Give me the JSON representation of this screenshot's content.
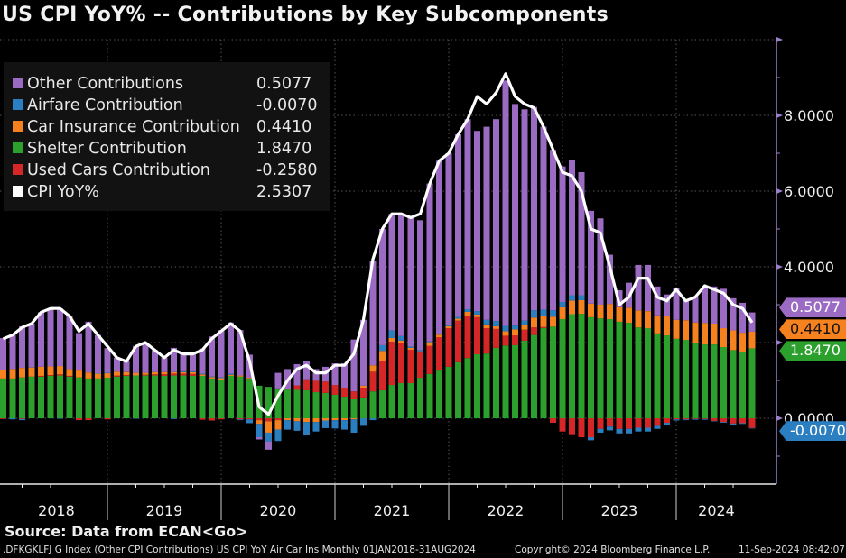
{
  "title": "US CPI YoY% -- Contributions by Key Subcomponents",
  "source": "Source: Data from ECAN<Go>",
  "footer": {
    "left": ".DFKGKLFJ G Index (Other CPI Contributions) US CPI YoY Air Car Ins  Monthly 01JAN2018-31AUG2024",
    "center": "Copyright© 2024 Bloomberg Finance L.P.",
    "right": "11-Sep-2024 08:42:07"
  },
  "colors": {
    "background": "#000000",
    "other": "#9b6bc3",
    "airfare": "#2b7fc1",
    "car_insurance": "#f5821f",
    "shelter": "#2ca02c",
    "used_cars": "#d62728",
    "cpi": "#ffffff",
    "axis": "#9b7fc8",
    "grid": "#555555"
  },
  "legend": [
    {
      "key": "other",
      "label": "Other Contributions",
      "value": "0.5077"
    },
    {
      "key": "airfare",
      "label": "Airfare Contribution",
      "value": "-0.0070"
    },
    {
      "key": "car_insurance",
      "label": "Car Insurance Contribution",
      "value": "0.4410"
    },
    {
      "key": "shelter",
      "label": "Shelter Contribution",
      "value": "1.8470"
    },
    {
      "key": "used_cars",
      "label": "Used Cars Contribution",
      "value": "-0.2580"
    },
    {
      "key": "cpi",
      "label": "CPI YoY%",
      "value": "2.5307"
    }
  ],
  "last_value_tags": [
    {
      "key": "other",
      "text": "0.5077"
    },
    {
      "key": "car_insurance",
      "text": "0.4410"
    },
    {
      "key": "shelter",
      "text": "1.8470"
    },
    {
      "key": "airfare",
      "text": "-0.0070"
    }
  ],
  "chart_data": {
    "type": "bar",
    "stacked": true,
    "title": "US CPI YoY% -- Contributions by Key Subcomponents",
    "xlabel": "",
    "ylabel": "",
    "frequency": "Monthly",
    "x_start": "2018-01",
    "x_end": "2024-08",
    "x_tick_labels": [
      "2018",
      "2019",
      "2020",
      "2021",
      "2022",
      "2023",
      "2024"
    ],
    "y_tick_labels": [
      "8.0000",
      "6.0000",
      "4.0000",
      "0.0000"
    ],
    "ylim": [
      -1.8,
      10.0
    ],
    "grid": true,
    "legend_position": "top-left",
    "series": [
      {
        "name": "Shelter Contribution",
        "key": "shelter",
        "values": [
          1.05,
          1.05,
          1.08,
          1.1,
          1.1,
          1.12,
          1.13,
          1.1,
          1.08,
          1.05,
          1.05,
          1.07,
          1.1,
          1.12,
          1.13,
          1.13,
          1.13,
          1.12,
          1.13,
          1.13,
          1.12,
          1.12,
          1.05,
          1.02,
          1.12,
          1.1,
          1.05,
          0.86,
          0.83,
          0.79,
          0.76,
          0.75,
          0.74,
          0.69,
          0.67,
          0.62,
          0.57,
          0.5,
          0.55,
          0.71,
          0.74,
          0.88,
          0.93,
          0.93,
          1.07,
          1.17,
          1.26,
          1.36,
          1.48,
          1.59,
          1.69,
          1.71,
          1.86,
          1.92,
          1.93,
          2.05,
          2.2,
          2.38,
          2.42,
          2.62,
          2.75,
          2.76,
          2.67,
          2.64,
          2.62,
          2.55,
          2.52,
          2.4,
          2.38,
          2.24,
          2.19,
          2.1,
          2.07,
          1.98,
          1.95,
          1.95,
          1.88,
          1.8,
          1.76,
          1.847
        ]
      },
      {
        "name": "Used Cars Contribution",
        "key": "used_cars",
        "values": [
          -0.02,
          0.0,
          -0.02,
          0.0,
          0.02,
          0.02,
          0.03,
          0.02,
          -0.05,
          -0.05,
          0.0,
          -0.03,
          0.03,
          0.02,
          0.0,
          0.02,
          0.03,
          0.04,
          0.05,
          0.05,
          0.05,
          -0.04,
          -0.06,
          -0.03,
          0.0,
          -0.03,
          -0.03,
          -0.05,
          -0.08,
          -0.05,
          0.0,
          0.12,
          0.29,
          0.3,
          0.3,
          0.26,
          0.24,
          0.21,
          0.26,
          0.52,
          0.76,
          1.14,
          1.07,
          0.88,
          0.67,
          0.74,
          0.88,
          1.02,
          1.1,
          1.12,
          0.98,
          0.67,
          0.5,
          0.26,
          0.26,
          0.29,
          0.2,
          0.03,
          -0.12,
          -0.35,
          -0.42,
          -0.5,
          -0.5,
          -0.28,
          -0.22,
          -0.28,
          -0.28,
          -0.25,
          -0.25,
          -0.2,
          -0.12,
          -0.03,
          -0.03,
          -0.02,
          -0.02,
          -0.07,
          -0.1,
          -0.14,
          -0.13,
          -0.258
        ]
      },
      {
        "name": "Car Insurance Contribution",
        "key": "car_insurance",
        "values": [
          0.22,
          0.25,
          0.25,
          0.24,
          0.24,
          0.23,
          0.22,
          0.18,
          0.18,
          0.16,
          0.13,
          0.12,
          0.1,
          0.08,
          0.07,
          0.05,
          0.06,
          0.06,
          0.04,
          0.04,
          0.05,
          0.04,
          0.04,
          0.04,
          0.03,
          0.03,
          0.02,
          -0.1,
          -0.3,
          -0.25,
          -0.05,
          -0.08,
          -0.1,
          -0.1,
          -0.06,
          -0.05,
          -0.05,
          -0.03,
          0.05,
          0.17,
          0.28,
          0.1,
          0.05,
          0.05,
          0.03,
          0.1,
          0.07,
          0.05,
          0.05,
          0.1,
          0.07,
          0.1,
          0.07,
          0.12,
          0.16,
          0.12,
          0.26,
          0.29,
          0.26,
          0.31,
          0.36,
          0.36,
          0.36,
          0.36,
          0.4,
          0.38,
          0.4,
          0.45,
          0.45,
          0.48,
          0.5,
          0.5,
          0.52,
          0.55,
          0.57,
          0.55,
          0.5,
          0.52,
          0.5,
          0.441
        ]
      },
      {
        "name": "Airfare Contribution",
        "key": "airfare",
        "values": [
          0.0,
          -0.03,
          -0.03,
          0.0,
          0.0,
          0.0,
          -0.01,
          0.0,
          0.0,
          0.0,
          0.01,
          0.01,
          0.0,
          0.0,
          -0.01,
          0.0,
          0.0,
          0.0,
          -0.02,
          0.02,
          0.02,
          0.02,
          0.01,
          0.02,
          0.03,
          -0.02,
          -0.1,
          -0.35,
          -0.23,
          -0.3,
          -0.25,
          -0.25,
          -0.35,
          -0.25,
          -0.2,
          -0.22,
          -0.25,
          -0.35,
          -0.2,
          -0.05,
          0.15,
          0.2,
          0.12,
          0.03,
          0.03,
          0.02,
          0.02,
          0.03,
          0.05,
          0.07,
          0.09,
          0.12,
          0.14,
          0.14,
          0.1,
          0.12,
          0.19,
          0.17,
          0.17,
          0.14,
          0.14,
          0.13,
          -0.08,
          -0.1,
          -0.1,
          -0.12,
          -0.12,
          -0.1,
          -0.1,
          -0.08,
          -0.05,
          -0.03,
          -0.02,
          -0.02,
          -0.02,
          -0.01,
          -0.02,
          -0.03,
          -0.02,
          -0.007
        ]
      },
      {
        "name": "Other Contributions",
        "key": "other",
        "values": [
          0.85,
          0.93,
          1.1,
          1.16,
          1.44,
          1.53,
          1.52,
          1.4,
          0.99,
          1.34,
          1.01,
          0.65,
          0.37,
          0.28,
          0.71,
          0.8,
          0.58,
          0.38,
          0.64,
          0.46,
          0.46,
          0.66,
          1.06,
          1.25,
          1.35,
          1.2,
          0.61,
          -0.06,
          -0.22,
          0.41,
          0.54,
          0.56,
          0.47,
          0.31,
          0.39,
          0.57,
          0.64,
          1.37,
          1.74,
          2.75,
          3.07,
          3.08,
          3.23,
          3.44,
          3.43,
          4.17,
          4.57,
          4.54,
          4.82,
          5.02,
          4.76,
          5.1,
          5.33,
          6.48,
          5.85,
          5.58,
          5.37,
          4.83,
          4.24,
          3.58,
          3.57,
          3.25,
          2.45,
          2.28,
          1.3,
          0.45,
          0.66,
          1.2,
          1.22,
          0.76,
          0.58,
          0.83,
          0.54,
          0.69,
          0.98,
          0.98,
          1.04,
          0.85,
          0.79,
          0.5077
        ]
      }
    ],
    "line": {
      "name": "CPI YoY%",
      "key": "cpi",
      "values": [
        2.1,
        2.2,
        2.4,
        2.5,
        2.8,
        2.9,
        2.9,
        2.7,
        2.3,
        2.5,
        2.2,
        1.9,
        1.6,
        1.5,
        1.9,
        2.0,
        1.8,
        1.6,
        1.8,
        1.7,
        1.7,
        1.8,
        2.1,
        2.3,
        2.5,
        2.3,
        1.5,
        0.3,
        0.1,
        0.6,
        1.0,
        1.3,
        1.4,
        1.2,
        1.2,
        1.4,
        1.4,
        1.7,
        2.6,
        4.2,
        5.0,
        5.4,
        5.4,
        5.3,
        5.4,
        6.2,
        6.8,
        7.0,
        7.5,
        7.9,
        8.5,
        8.3,
        8.6,
        9.1,
        8.5,
        8.3,
        8.2,
        7.7,
        7.1,
        6.5,
        6.4,
        6.0,
        5.0,
        4.9,
        4.0,
        3.0,
        3.2,
        3.7,
        3.7,
        3.2,
        3.1,
        3.4,
        3.1,
        3.2,
        3.5,
        3.4,
        3.3,
        3.0,
        2.9,
        2.5307
      ]
    }
  }
}
